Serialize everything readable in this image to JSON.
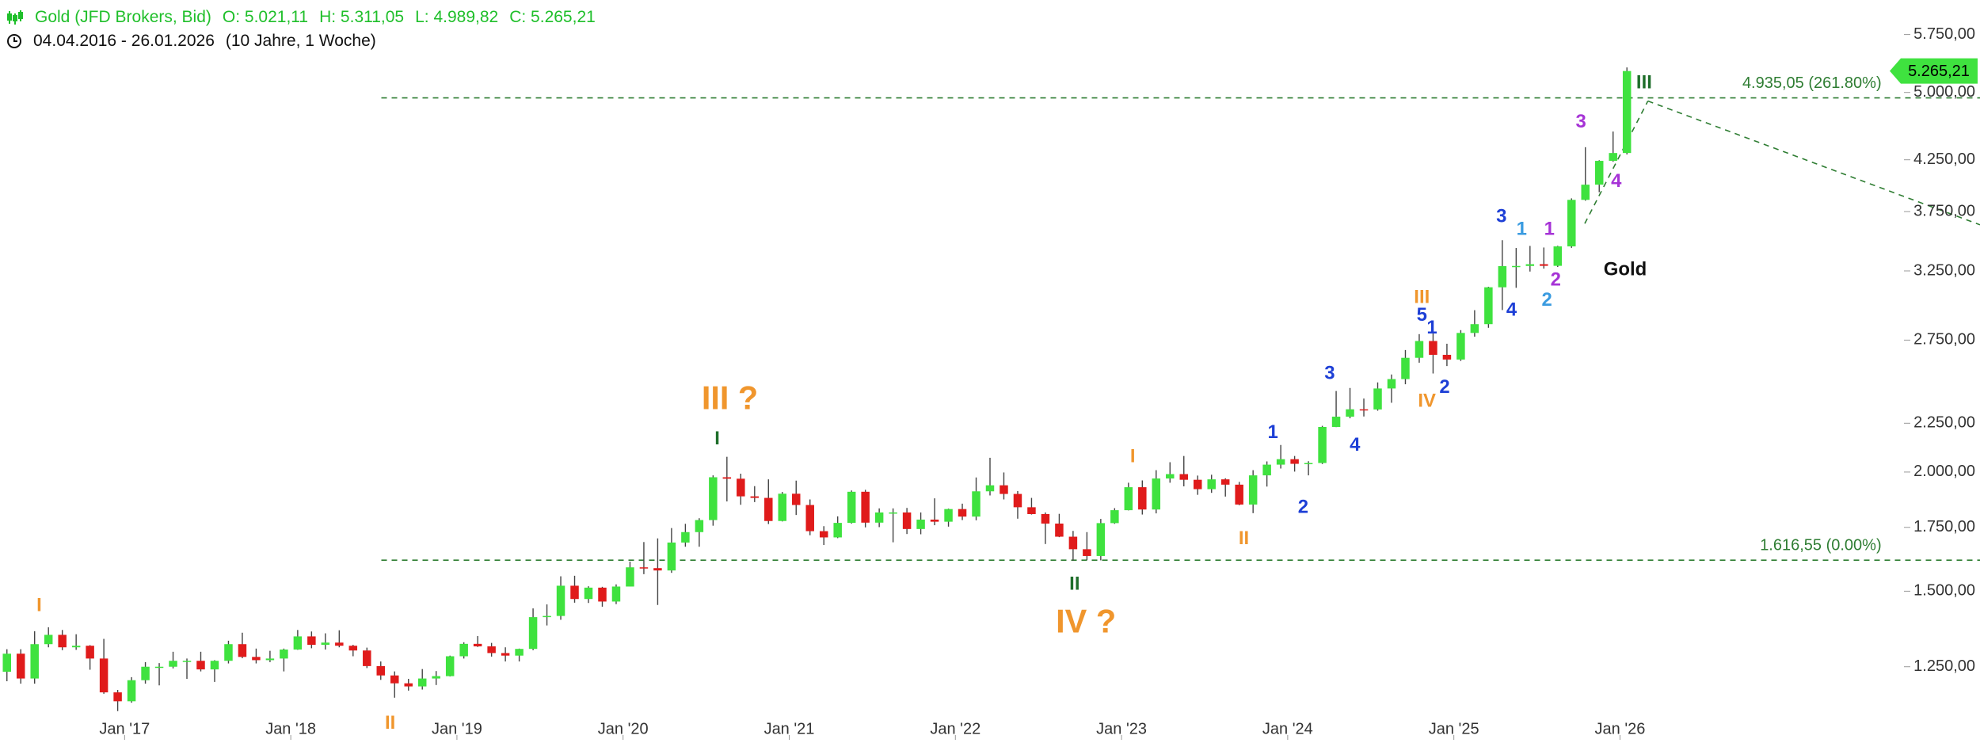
{
  "chart_data": {
    "type": "candlestick",
    "symbol": "Gold (JFD Brokers, Bid)",
    "ohlc_labels": [
      "O: 5.021,11",
      "H: 5.311,05",
      "L: 4.989,82",
      "C: 5.265,21"
    ],
    "period": "04.04.2016 - 26.01.2026",
    "interval": "(10 Jahre, 1 Woche)",
    "up_color": "#3fe23f",
    "down_color": "#e01b1b",
    "log_scale": true,
    "x": [
      "2016-04",
      "2016-05",
      "2016-06",
      "2016-07",
      "2016-08",
      "2016-09",
      "2016-10",
      "2016-11",
      "2016-12",
      "2017-01",
      "2017-02",
      "2017-03",
      "2017-04",
      "2017-05",
      "2017-06",
      "2017-07",
      "2017-08",
      "2017-09",
      "2017-10",
      "2017-11",
      "2017-12",
      "2018-01",
      "2018-02",
      "2018-03",
      "2018-04",
      "2018-05",
      "2018-06",
      "2018-07",
      "2018-08",
      "2018-09",
      "2018-10",
      "2018-11",
      "2018-12",
      "2019-01",
      "2019-02",
      "2019-03",
      "2019-04",
      "2019-05",
      "2019-06",
      "2019-07",
      "2019-08",
      "2019-09",
      "2019-10",
      "2019-11",
      "2019-12",
      "2020-01",
      "2020-02",
      "2020-03",
      "2020-04",
      "2020-05",
      "2020-06",
      "2020-07",
      "2020-08",
      "2020-09",
      "2020-10",
      "2020-11",
      "2020-12",
      "2021-01",
      "2021-02",
      "2021-03",
      "2021-04",
      "2021-05",
      "2021-06",
      "2021-07",
      "2021-08",
      "2021-09",
      "2021-10",
      "2021-11",
      "2021-12",
      "2022-01",
      "2022-02",
      "2022-03",
      "2022-04",
      "2022-05",
      "2022-06",
      "2022-07",
      "2022-08",
      "2022-09",
      "2022-10",
      "2022-11",
      "2022-12",
      "2023-01",
      "2023-02",
      "2023-03",
      "2023-04",
      "2023-05",
      "2023-06",
      "2023-07",
      "2023-08",
      "2023-09",
      "2023-10",
      "2023-11",
      "2023-12",
      "2024-01",
      "2024-02",
      "2024-03",
      "2024-04",
      "2024-05",
      "2024-06",
      "2024-07",
      "2024-08",
      "2024-09",
      "2024-10",
      "2024-11",
      "2024-12",
      "2025-01",
      "2025-02",
      "2025-03",
      "2025-04",
      "2025-05",
      "2025-06",
      "2025-07",
      "2025-08",
      "2025-09",
      "2025-10",
      "2025-11",
      "2025-12",
      "2026-01"
    ],
    "open": [
      1235,
      1290,
      1215,
      1320,
      1350,
      1310,
      1315,
      1275,
      1175,
      1150,
      1210,
      1250,
      1250,
      1268,
      1268,
      1242,
      1268,
      1320,
      1280,
      1270,
      1275,
      1303,
      1345,
      1318,
      1325,
      1315,
      1300,
      1252,
      1224,
      1201,
      1192,
      1215,
      1222,
      1282,
      1321,
      1313,
      1292,
      1284,
      1305,
      1409,
      1413,
      1520,
      1472,
      1513,
      1463,
      1517,
      1589,
      1586,
      1577,
      1687,
      1730,
      1781,
      1975,
      1968,
      1886,
      1879,
      1777,
      1898,
      1847,
      1734,
      1708,
      1769,
      1907,
      1770,
      1814,
      1814,
      1743,
      1783,
      1774,
      1829,
      1796,
      1909,
      1937,
      1897,
      1837,
      1807,
      1766,
      1711,
      1660,
      1633,
      1768,
      1824,
      1928,
      1827,
      1969,
      1990,
      1963,
      1919,
      1965,
      1940,
      1849,
      1984,
      2036,
      2063,
      2040,
      2044,
      2230,
      2286,
      2327,
      2326,
      2447,
      2503,
      2635,
      2744,
      2654,
      2624,
      2798,
      2858,
      3124,
      3288,
      3289,
      3303,
      3290,
      3448,
      3858,
      4002,
      4239,
      4320
    ],
    "high": [
      1304,
      1304,
      1362,
      1375,
      1366,
      1352,
      1317,
      1337,
      1182,
      1219,
      1264,
      1261,
      1296,
      1275,
      1296,
      1270,
      1331,
      1357,
      1306,
      1299,
      1306,
      1366,
      1361,
      1355,
      1365,
      1318,
      1309,
      1266,
      1236,
      1214,
      1243,
      1237,
      1284,
      1326,
      1346,
      1324,
      1310,
      1306,
      1439,
      1453,
      1555,
      1557,
      1518,
      1516,
      1525,
      1611,
      1689,
      1704,
      1747,
      1765,
      1789,
      1984,
      2075,
      1992,
      1933,
      1965,
      1906,
      1959,
      1872,
      1755,
      1797,
      1913,
      1916,
      1832,
      1832,
      1834,
      1814,
      1877,
      1831,
      1853,
      1974,
      2070,
      1998,
      1910,
      1879,
      1814,
      1808,
      1735,
      1730,
      1786,
      1833,
      1949,
      1960,
      2009,
      2048,
      2079,
      1983,
      1987,
      1970,
      1953,
      2009,
      2052,
      2135,
      2079,
      2053,
      2236,
      2432,
      2450,
      2388,
      2483,
      2531,
      2685,
      2790,
      2801,
      2726,
      2817,
      2956,
      3128,
      3500,
      3435,
      3452,
      3439,
      3453,
      3872,
      4381,
      4245,
      4550,
      5311.05
    ],
    "low": [
      1207,
      1200,
      1200,
      1310,
      1301,
      1302,
      1241,
      1171,
      1123,
      1146,
      1200,
      1195,
      1245,
      1214,
      1236,
      1205,
      1260,
      1276,
      1260,
      1264,
      1236,
      1302,
      1307,
      1303,
      1310,
      1282,
      1246,
      1211,
      1160,
      1180,
      1183,
      1196,
      1221,
      1275,
      1311,
      1281,
      1266,
      1266,
      1301,
      1381,
      1400,
      1459,
      1458,
      1445,
      1454,
      1517,
      1563,
      1451,
      1568,
      1670,
      1670,
      1757,
      1863,
      1848,
      1860,
      1764,
      1775,
      1803,
      1717,
      1677,
      1705,
      1766,
      1750,
      1751,
      1688,
      1722,
      1721,
      1759,
      1753,
      1781,
      1780,
      1890,
      1872,
      1787,
      1805,
      1681,
      1709,
      1615,
      1617,
      1616,
      1765,
      1823,
      1805,
      1810,
      1949,
      1932,
      1893,
      1902,
      1885,
      1846,
      1811,
      1931,
      2017,
      2002,
      1984,
      2039,
      2229,
      2277,
      2287,
      2319,
      2364,
      2472,
      2604,
      2537,
      2583,
      2615,
      2773,
      2833,
      2957,
      3120,
      3245,
      3268,
      3281,
      3436,
      3850,
      3930,
      4230,
      4305
    ],
    "close": [
      1290,
      1215,
      1320,
      1350,
      1310,
      1315,
      1275,
      1175,
      1150,
      1210,
      1250,
      1250,
      1268,
      1268,
      1242,
      1268,
      1320,
      1280,
      1270,
      1275,
      1303,
      1345,
      1318,
      1325,
      1315,
      1300,
      1252,
      1224,
      1201,
      1192,
      1215,
      1222,
      1282,
      1321,
      1313,
      1292,
      1284,
      1305,
      1409,
      1413,
      1520,
      1472,
      1513,
      1463,
      1517,
      1589,
      1586,
      1577,
      1687,
      1730,
      1781,
      1975,
      1968,
      1886,
      1879,
      1777,
      1898,
      1847,
      1734,
      1708,
      1769,
      1907,
      1770,
      1814,
      1814,
      1743,
      1783,
      1774,
      1829,
      1796,
      1909,
      1937,
      1897,
      1837,
      1807,
      1766,
      1711,
      1660,
      1633,
      1768,
      1824,
      1928,
      1827,
      1969,
      1990,
      1963,
      1919,
      1965,
      1940,
      1849,
      1984,
      2036,
      2063,
      2040,
      2044,
      2230,
      2286,
      2327,
      2326,
      2447,
      2503,
      2635,
      2744,
      2654,
      2624,
      2798,
      2858,
      3124,
      3288,
      3289,
      3303,
      3290,
      3448,
      3858,
      4002,
      4239,
      4320,
      5265.21
    ],
    "xlim": [
      "2016-04",
      "2028-03"
    ],
    "xticks": [
      {
        "value": "2017-01",
        "label": "Jan '17"
      },
      {
        "value": "2018-01",
        "label": "Jan '18"
      },
      {
        "value": "2019-01",
        "label": "Jan '19"
      },
      {
        "value": "2020-01",
        "label": "Jan '20"
      },
      {
        "value": "2021-01",
        "label": "Jan '21"
      },
      {
        "value": "2022-01",
        "label": "Jan '22"
      },
      {
        "value": "2023-01",
        "label": "Jan '23"
      },
      {
        "value": "2024-01",
        "label": "Jan '24"
      },
      {
        "value": "2025-01",
        "label": "Jan '25"
      },
      {
        "value": "2026-01",
        "label": "Jan '26"
      }
    ],
    "ylim": [
      1066,
      6250
    ],
    "yticks": [
      {
        "value": 1250,
        "label": "1.250,00"
      },
      {
        "value": 1500,
        "label": "1.500,00"
      },
      {
        "value": 1750,
        "label": "1.750,00"
      },
      {
        "value": 2000,
        "label": "2.000,00"
      },
      {
        "value": 2250,
        "label": "2.250,00"
      },
      {
        "value": 2750,
        "label": "2.750,00"
      },
      {
        "value": 3250,
        "label": "3.250,00"
      },
      {
        "value": 3750,
        "label": "3.750,00"
      },
      {
        "value": 4250,
        "label": "4.250,00"
      },
      {
        "value": 5000,
        "label": "5.000,00"
      },
      {
        "value": 5750,
        "label": "5.750,00"
      }
    ],
    "levels": [
      {
        "value": 4935.05,
        "label": "4.935,05 (261.80%)"
      },
      {
        "value": 1616.55,
        "label": "1.616,55 (0.00%)"
      }
    ],
    "level_color": "#2e7d32",
    "last_price": {
      "value": 5265.21,
      "label": "5.265,21"
    },
    "annotations": [
      {
        "text": "I",
        "color": "#f0962d"
      },
      {
        "text": "II",
        "color": "#f0962d"
      },
      {
        "text": "III ?",
        "color": "#f0962d"
      },
      {
        "text": "I",
        "color": "#1e6e2a"
      },
      {
        "text": "IV ?",
        "color": "#f0962d"
      },
      {
        "text": "II",
        "color": "#1e6e2a"
      },
      {
        "text": "I",
        "color": "#f0962d"
      },
      {
        "text": "II",
        "color": "#f0962d"
      },
      {
        "text": "1",
        "color": "#1d3fd6"
      },
      {
        "text": "2",
        "color": "#1d3fd6"
      },
      {
        "text": "3",
        "color": "#1d3fd6"
      },
      {
        "text": "4",
        "color": "#1d3fd6"
      },
      {
        "text": "III",
        "color": "#f0962d"
      },
      {
        "text": "5",
        "color": "#1d3fd6"
      },
      {
        "text": "1",
        "color": "#1d3fd6"
      },
      {
        "text": "IV",
        "color": "#f0962d"
      },
      {
        "text": "2",
        "color": "#1d3fd6"
      },
      {
        "text": "3",
        "color": "#1d3fd6"
      },
      {
        "text": "1",
        "color": "#3a9be0"
      },
      {
        "text": "4",
        "color": "#1d3fd6"
      },
      {
        "text": "2",
        "color": "#3a9be0"
      },
      {
        "text": "1",
        "color": "#a633d6"
      },
      {
        "text": "2",
        "color": "#a633d6"
      },
      {
        "text": "3",
        "color": "#a633d6"
      },
      {
        "text": "4",
        "color": "#a633d6"
      },
      {
        "text": "III",
        "color": "#1e6e2a"
      },
      {
        "text": "Gold",
        "color": "#111111"
      }
    ]
  }
}
